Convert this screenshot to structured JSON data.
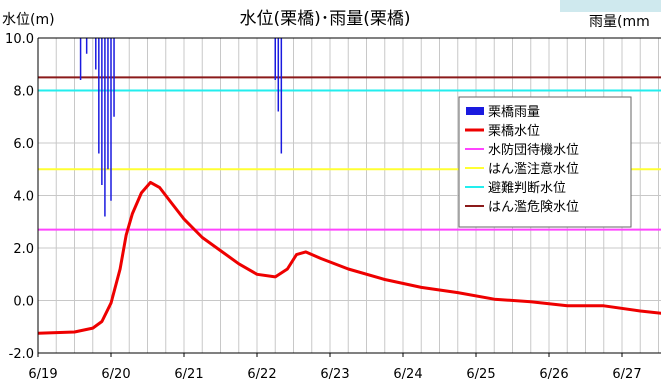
{
  "chart_data": {
    "type": "line",
    "title": "水位(栗橋)･雨量(栗橋)",
    "ylabel": "水位(m)",
    "y2label": "雨量(mm",
    "ylim": [
      -2.0,
      10.0
    ],
    "yticks": [
      "10.0",
      "8.0",
      "6.0",
      "4.0",
      "2.0",
      "0.0",
      "-2.0"
    ],
    "ytick_values": [
      10,
      8,
      6,
      4,
      2,
      0,
      -2
    ],
    "x_date_start": "6/19",
    "x_date_end": "6/28",
    "xticks": [
      "6/19",
      "6/20",
      "6/21",
      "6/22",
      "6/23",
      "6/24",
      "6/25",
      "6/26",
      "6/27"
    ],
    "grid": true,
    "legend": {
      "placement": "top-right",
      "entries": [
        "栗橋雨量",
        "栗橋水位",
        "水防団待機水位",
        "はん濫注意水位",
        "避難判断水位",
        "はん濫危険水位"
      ]
    },
    "colors": {
      "rain": "#1a1adf",
      "level": "#ee0000",
      "standby": "#ff44ff",
      "caution": "#ffff33",
      "evac": "#22eeee",
      "danger": "#8b1a1a",
      "grid": "#c8c8c8",
      "header_band": "#cfe9ee"
    },
    "thresholds": [
      {
        "name": "はん濫危険水位",
        "value": 8.5,
        "color": "#8b1a1a"
      },
      {
        "name": "避難判断水位",
        "value": 8.0,
        "color": "#22eeee"
      },
      {
        "name": "はん濫注意水位",
        "value": 5.0,
        "color": "#ffff33"
      },
      {
        "name": "水防団待機水位",
        "value": 2.7,
        "color": "#ff44ff"
      }
    ],
    "rain_scale_max_mm": 60,
    "rain": [
      {
        "x": "2020-06-19T14:00",
        "mm": 8
      },
      {
        "x": "2020-06-19T16:00",
        "mm": 3
      },
      {
        "x": "2020-06-19T19:00",
        "mm": 6
      },
      {
        "x": "2020-06-19T20:00",
        "mm": 22
      },
      {
        "x": "2020-06-19T21:00",
        "mm": 28
      },
      {
        "x": "2020-06-19T22:00",
        "mm": 34
      },
      {
        "x": "2020-06-19T23:00",
        "mm": 25
      },
      {
        "x": "2020-06-20T00:00",
        "mm": 31
      },
      {
        "x": "2020-06-20T01:00",
        "mm": 15
      },
      {
        "x": "2020-06-22T06:00",
        "mm": 8
      },
      {
        "x": "2020-06-22T07:00",
        "mm": 14
      },
      {
        "x": "2020-06-22T08:00",
        "mm": 22
      }
    ],
    "series": [
      {
        "name": "栗橋水位",
        "points": [
          {
            "x": "2020-06-19T00:00",
            "y": -1.25
          },
          {
            "x": "2020-06-19T12:00",
            "y": -1.2
          },
          {
            "x": "2020-06-19T18:00",
            "y": -1.05
          },
          {
            "x": "2020-06-19T21:00",
            "y": -0.8
          },
          {
            "x": "2020-06-20T00:00",
            "y": -0.1
          },
          {
            "x": "2020-06-20T03:00",
            "y": 1.2
          },
          {
            "x": "2020-06-20T05:00",
            "y": 2.5
          },
          {
            "x": "2020-06-20T07:00",
            "y": 3.3
          },
          {
            "x": "2020-06-20T10:00",
            "y": 4.1
          },
          {
            "x": "2020-06-20T13:00",
            "y": 4.5
          },
          {
            "x": "2020-06-20T16:00",
            "y": 4.3
          },
          {
            "x": "2020-06-20T20:00",
            "y": 3.7
          },
          {
            "x": "2020-06-21T00:00",
            "y": 3.1
          },
          {
            "x": "2020-06-21T06:00",
            "y": 2.4
          },
          {
            "x": "2020-06-21T12:00",
            "y": 1.9
          },
          {
            "x": "2020-06-21T18:00",
            "y": 1.4
          },
          {
            "x": "2020-06-22T00:00",
            "y": 1.0
          },
          {
            "x": "2020-06-22T06:00",
            "y": 0.9
          },
          {
            "x": "2020-06-22T10:00",
            "y": 1.2
          },
          {
            "x": "2020-06-22T13:00",
            "y": 1.75
          },
          {
            "x": "2020-06-22T16:00",
            "y": 1.85
          },
          {
            "x": "2020-06-22T21:00",
            "y": 1.6
          },
          {
            "x": "2020-06-23T06:00",
            "y": 1.2
          },
          {
            "x": "2020-06-23T18:00",
            "y": 0.8
          },
          {
            "x": "2020-06-24T06:00",
            "y": 0.5
          },
          {
            "x": "2020-06-24T18:00",
            "y": 0.3
          },
          {
            "x": "2020-06-25T06:00",
            "y": 0.05
          },
          {
            "x": "2020-06-25T18:00",
            "y": -0.05
          },
          {
            "x": "2020-06-26T06:00",
            "y": -0.2
          },
          {
            "x": "2020-06-26T18:00",
            "y": -0.2
          },
          {
            "x": "2020-06-27T06:00",
            "y": -0.4
          },
          {
            "x": "2020-06-27T18:00",
            "y": -0.55
          },
          {
            "x": "2020-06-28T00:00",
            "y": -0.65
          }
        ]
      }
    ]
  }
}
